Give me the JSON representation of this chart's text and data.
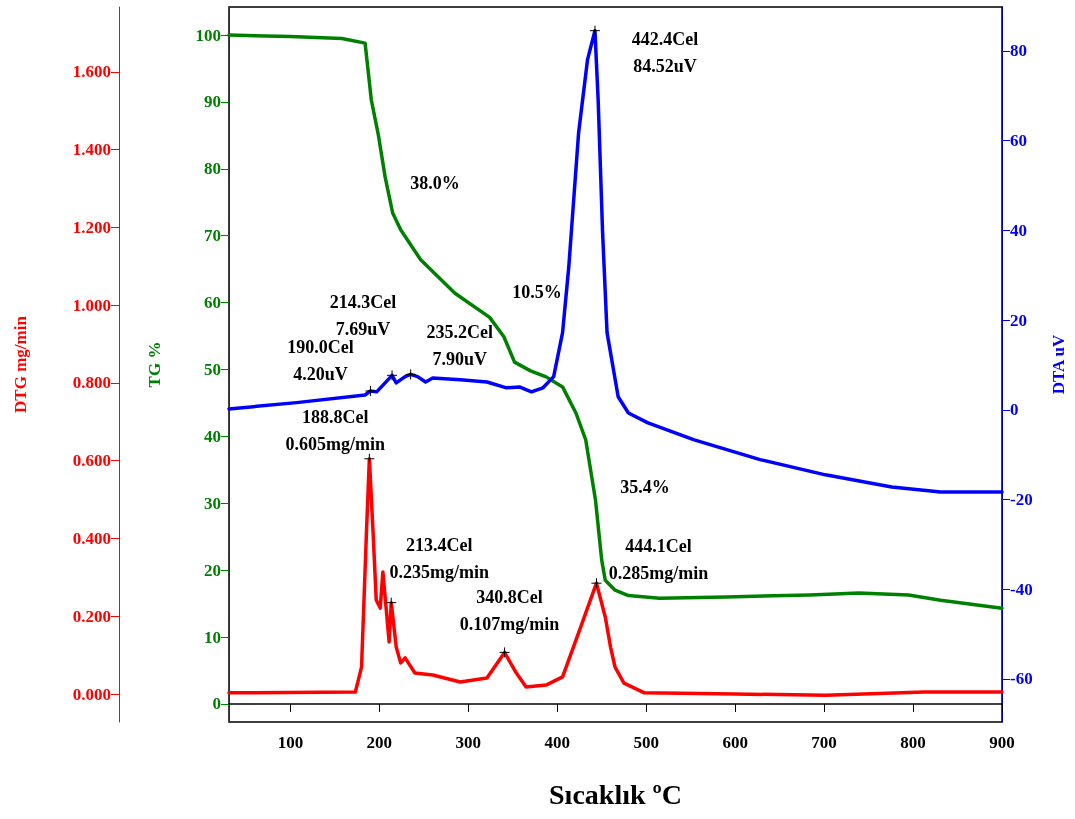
{
  "chart_data": {
    "type": "line",
    "xlabel": "Sıcaklık ºC",
    "ylabel": "TG %",
    "y2label": "DTA uV",
    "y3label": "DTG mg/min",
    "xlim": [
      31,
      900
    ],
    "xticks": [
      100,
      200,
      300,
      400,
      500,
      600,
      700,
      800,
      900
    ],
    "ylim": [
      -2.7,
      104.2
    ],
    "yticks": [
      0,
      10,
      20,
      30,
      40,
      50,
      60,
      70,
      80,
      90,
      100
    ],
    "y2lim": [
      -69.6,
      89.8
    ],
    "y2ticks": [
      -60,
      -40,
      -20,
      0,
      20,
      40,
      60,
      80
    ],
    "y3lim": [
      -0.072,
      1.767
    ],
    "y3ticks": [
      {
        "value": 0,
        "label": "0.000"
      },
      {
        "value": 0.2,
        "label": "0.200"
      },
      {
        "value": 0.4,
        "label": "0.400"
      },
      {
        "value": 0.6,
        "label": "0.600"
      },
      {
        "value": 0.8,
        "label": "0.800"
      },
      {
        "value": 1,
        "label": "1.000"
      },
      {
        "value": 1.2,
        "label": "1.200"
      },
      {
        "value": 1.4,
        "label": "1.400"
      },
      {
        "value": 1.6,
        "label": "1.600"
      }
    ],
    "annotations": [
      "38.0%",
      "10.5%",
      "35.4%"
    ],
    "series": [
      {
        "color": "#008000",
        "axis": "y",
        "x": [
          31,
          100,
          158,
          184,
          191,
          199,
          206.5,
          215,
          224,
          246.5,
          285,
          324,
          340,
          352,
          370,
          387.5,
          406,
          421,
          432,
          443,
          450,
          454,
          465,
          480,
          515,
          590.5,
          684,
          739,
          795,
          831,
          900
        ],
        "values": [
          100,
          99.8,
          99.5,
          98.8,
          90.3,
          85,
          78.8,
          73.4,
          70.9,
          66.4,
          61.4,
          57.8,
          54.9,
          51.1,
          49.8,
          48.9,
          47.4,
          43.5,
          39.5,
          30.5,
          21.5,
          18.5,
          17,
          16.2,
          15.8,
          16.0,
          16.3,
          16.6,
          16.3,
          15.5,
          14.3
        ]
      },
      {
        "color": "#0000ff",
        "axis": "y2",
        "x": [
          31,
          107,
          184,
          190.0,
          197,
          206.5,
          214.3,
          219,
          229,
          235.2,
          243,
          252,
          260,
          291,
          321,
          343,
          357.5,
          371,
          384,
          396,
          406,
          413,
          424,
          434,
          442.4,
          446,
          451,
          456,
          468.5,
          480,
          502,
          554,
          628,
          701.5,
          776,
          831,
          900
        ],
        "values": [
          0.2,
          1.6,
          3.3,
          4.2,
          4.0,
          6.0,
          7.69,
          6.0,
          7.4,
          7.9,
          7.4,
          6.2,
          7.1,
          6.7,
          6.2,
          4.9,
          5.1,
          4.0,
          4.9,
          7.4,
          17.2,
          31.9,
          61.7,
          78,
          84.52,
          69.1,
          39.5,
          17.2,
          2.9,
          -0.7,
          -2.9,
          -6.7,
          -11.1,
          -14.5,
          -17.2,
          -18.3,
          -18.3
        ],
        "value_labels": [
          null,
          null,
          null,
          "190.0Cel\n4.20uV",
          null,
          null,
          "214.3Cel\n7.69uV",
          null,
          null,
          "235.2Cel\n7.90uV",
          null,
          null,
          null,
          null,
          null,
          null,
          null,
          null,
          null,
          null,
          null,
          null,
          null,
          null,
          "442.4Cel\n84.52uV",
          null,
          null,
          null,
          null,
          null,
          null,
          null,
          null,
          null,
          null,
          null,
          null
        ]
      },
      {
        "color": "#ff0000",
        "axis": "y3",
        "x": [
          31,
          173,
          180,
          185.5,
          188.8,
          193,
          196.5,
          201,
          204,
          207.5,
          211,
          213.4,
          219,
          224,
          229,
          240,
          260,
          291,
          321,
          340.8,
          354,
          365,
          387.5,
          406,
          424,
          444.1,
          454,
          460,
          465,
          475,
          498,
          600,
          701.5,
          812.5,
          900
        ],
        "values": [
          0.003,
          0.005,
          0.069,
          0.414,
          0.605,
          0.414,
          0.242,
          0.221,
          0.314,
          0.224,
          0.134,
          0.235,
          0.121,
          0.08,
          0.093,
          0.054,
          0.049,
          0.031,
          0.041,
          0.107,
          0.054,
          0.018,
          0.023,
          0.044,
          0.157,
          0.285,
          0.198,
          0.12,
          0.069,
          0.028,
          0.003,
          0,
          -0.003,
          0.005,
          0.005
        ],
        "value_labels": [
          null,
          null,
          null,
          null,
          "188.8Cel\n0.605mg/min",
          null,
          null,
          null,
          null,
          null,
          null,
          "213.4Cel\n0.235mg/min",
          null,
          null,
          null,
          null,
          null,
          null,
          null,
          "340.8Cel\n0.107mg/min",
          null,
          null,
          null,
          null,
          null,
          "444.1Cel\n0.285mg/min",
          null,
          null,
          null,
          null,
          null,
          null,
          null,
          null,
          null
        ]
      }
    ]
  }
}
